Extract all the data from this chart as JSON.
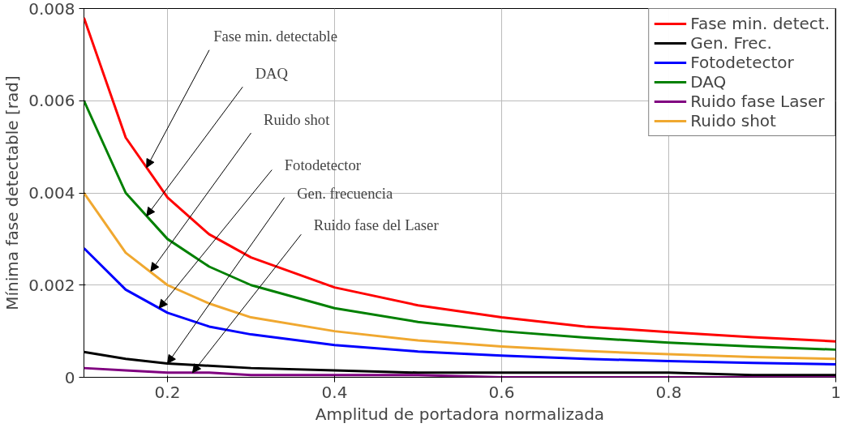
{
  "chart_data": {
    "type": "line",
    "xlabel": "Amplitud de portadora normalizada",
    "ylabel": "Mínima fase detectable [rad]",
    "x": [
      0.1,
      0.15,
      0.2,
      0.25,
      0.3,
      0.4,
      0.5,
      0.6,
      0.7,
      0.8,
      0.9,
      1.0
    ],
    "xlim": [
      0.1,
      1
    ],
    "xticks": [
      0.2,
      0.4,
      0.6,
      0.8,
      1
    ],
    "ylim": [
      0,
      0.008
    ],
    "yticks": [
      0,
      0.002,
      0.004,
      0.006,
      0.008
    ],
    "grid": true,
    "legend": "top right",
    "line_style": "solid",
    "marker": "none",
    "series": [
      {
        "name": "Fase min. detect.",
        "color": "#ff0000",
        "values": [
          0.0078,
          0.0052,
          0.0039,
          0.0031,
          0.0026,
          0.00195,
          0.00156,
          0.0013,
          0.0011,
          0.00098,
          0.00087,
          0.00078
        ]
      },
      {
        "name": "Gen. Frec.",
        "color": "#000000",
        "values": [
          0.00055,
          0.0004,
          0.0003,
          0.00025,
          0.0002,
          0.00015,
          0.0001,
          0.0001,
          0.0001,
          0.0001,
          5e-05,
          5e-05
        ]
      },
      {
        "name": "Fotodetector",
        "color": "#0000ff",
        "values": [
          0.0028,
          0.0019,
          0.0014,
          0.0011,
          0.00093,
          0.0007,
          0.00056,
          0.00047,
          0.0004,
          0.00035,
          0.00031,
          0.00028
        ]
      },
      {
        "name": "DAQ",
        "color": "#008000",
        "values": [
          0.006,
          0.004,
          0.003,
          0.0024,
          0.002,
          0.0015,
          0.0012,
          0.001,
          0.00086,
          0.00075,
          0.00067,
          0.0006
        ]
      },
      {
        "name": "Ruido fase Laser",
        "color": "#800080",
        "values": [
          0.0002,
          0.00015,
          0.0001,
          0.0001,
          5e-05,
          5e-05,
          5e-05,
          0,
          0,
          0,
          0,
          0
        ]
      },
      {
        "name": "Ruido shot",
        "color": "#f0a830",
        "values": [
          0.004,
          0.0027,
          0.002,
          0.0016,
          0.0013,
          0.001,
          0.0008,
          0.00067,
          0.00057,
          0.0005,
          0.00044,
          0.0004
        ]
      }
    ],
    "annotations": [
      {
        "text": "Fase min. detectable",
        "x": 0.175,
        "y": 0.00455
      },
      {
        "text": "DAQ",
        "x": 0.175,
        "y": 0.0035
      },
      {
        "text": "Ruido shot",
        "x": 0.18,
        "y": 0.0023
      },
      {
        "text": "Fotodetector",
        "x": 0.19,
        "y": 0.0015
      },
      {
        "text": "Gen. frecuencia",
        "x": 0.2,
        "y": 0.0003
      },
      {
        "text": "Ruido fase del  Laser",
        "x": 0.23,
        "y": 0.0001
      }
    ]
  }
}
